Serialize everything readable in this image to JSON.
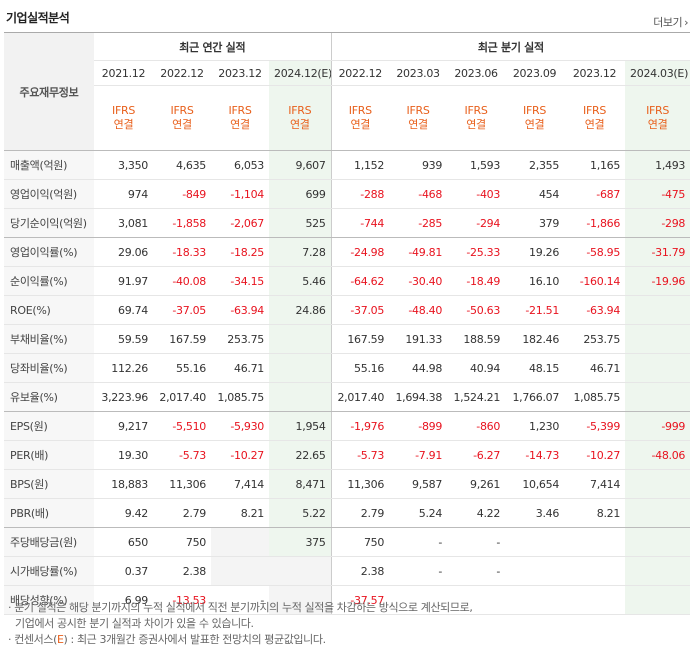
{
  "header": {
    "title": "기업실적분석",
    "more_label": "더보기",
    "more_icon": "chevron-right-icon"
  },
  "table": {
    "corner_label": "주요재무정보",
    "group_annual": "최근 연간 실적",
    "group_quarter": "최근 분기 실적",
    "periods": [
      "2021.12",
      "2022.12",
      "2023.12",
      "2024.12(E)",
      "2022.12",
      "2023.03",
      "2023.06",
      "2023.09",
      "2023.12",
      "2024.03(E)"
    ],
    "ifrs_top": "IFRS",
    "ifrs_bottom": "연결",
    "rows": [
      {
        "label": "매출액(억원)",
        "values": [
          "3,350",
          "4,635",
          "6,053",
          "9,607",
          "1,152",
          "939",
          "1,593",
          "2,355",
          "1,165",
          "1,493"
        ]
      },
      {
        "label": "영업이익(억원)",
        "values": [
          "974",
          "-849",
          "-1,104",
          "699",
          "-288",
          "-468",
          "-403",
          "454",
          "-687",
          "-475"
        ]
      },
      {
        "label": "당기순이익(억원)",
        "values": [
          "3,081",
          "-1,858",
          "-2,067",
          "525",
          "-744",
          "-285",
          "-294",
          "379",
          "-1,866",
          "-298"
        ]
      },
      {
        "label": "영업이익률(%)",
        "values": [
          "29.06",
          "-18.33",
          "-18.25",
          "7.28",
          "-24.98",
          "-49.81",
          "-25.33",
          "19.26",
          "-58.95",
          "-31.79"
        ]
      },
      {
        "label": "순이익률(%)",
        "values": [
          "91.97",
          "-40.08",
          "-34.15",
          "5.46",
          "-64.62",
          "-30.40",
          "-18.49",
          "16.10",
          "-160.14",
          "-19.96"
        ]
      },
      {
        "label": "ROE(%)",
        "values": [
          "69.74",
          "-37.05",
          "-63.94",
          "24.86",
          "-37.05",
          "-48.40",
          "-50.63",
          "-21.51",
          "-63.94",
          ""
        ]
      },
      {
        "label": "부채비율(%)",
        "values": [
          "59.59",
          "167.59",
          "253.75",
          "",
          "167.59",
          "191.33",
          "188.59",
          "182.46",
          "253.75",
          ""
        ]
      },
      {
        "label": "당좌비율(%)",
        "values": [
          "112.26",
          "55.16",
          "46.71",
          "",
          "55.16",
          "44.98",
          "40.94",
          "48.15",
          "46.71",
          ""
        ]
      },
      {
        "label": "유보율(%)",
        "values": [
          "3,223.96",
          "2,017.40",
          "1,085.75",
          "",
          "2,017.40",
          "1,694.38",
          "1,524.21",
          "1,766.07",
          "1,085.75",
          ""
        ]
      },
      {
        "label": "EPS(원)",
        "values": [
          "9,217",
          "-5,510",
          "-5,930",
          "1,954",
          "-1,976",
          "-899",
          "-860",
          "1,230",
          "-5,399",
          "-999"
        ]
      },
      {
        "label": "PER(배)",
        "values": [
          "19.30",
          "-5.73",
          "-10.27",
          "22.65",
          "-5.73",
          "-7.91",
          "-6.27",
          "-14.73",
          "-10.27",
          "-48.06"
        ]
      },
      {
        "label": "BPS(원)",
        "values": [
          "18,883",
          "11,306",
          "7,414",
          "8,471",
          "11,306",
          "9,587",
          "9,261",
          "10,654",
          "7,414",
          ""
        ]
      },
      {
        "label": "PBR(배)",
        "values": [
          "9.42",
          "2.79",
          "8.21",
          "5.22",
          "2.79",
          "5.24",
          "4.22",
          "3.46",
          "8.21",
          ""
        ]
      },
      {
        "label": "주당배당금(원)",
        "values": [
          "650",
          "750",
          "",
          "375",
          "750",
          "-",
          "-",
          "",
          "",
          ""
        ]
      },
      {
        "label": "시가배당률(%)",
        "values": [
          "0.37",
          "2.38",
          "",
          "",
          "2.38",
          "-",
          "-",
          "",
          "",
          ""
        ]
      },
      {
        "label": "배당성향(%)",
        "values": [
          "6.99",
          "-13.53",
          "-",
          "",
          "-37.57",
          "",
          "",
          "",
          "",
          ""
        ]
      }
    ]
  },
  "notes": {
    "line1": "분기 실적은 해당 분기까지의 누적 실적에서 직전 분기까지의 누적 실적을 차감하는 방식으로 계산되므로,",
    "line2": "기업에서 공시한 분기 실적과 차이가 있을 수 있습니다.",
    "line3_prefix": "컨센서스(",
    "line3_e": "E",
    "line3_suffix": ") : 최근 3개월간 증권사에서 발표한 전망치의 평균값입니다."
  }
}
